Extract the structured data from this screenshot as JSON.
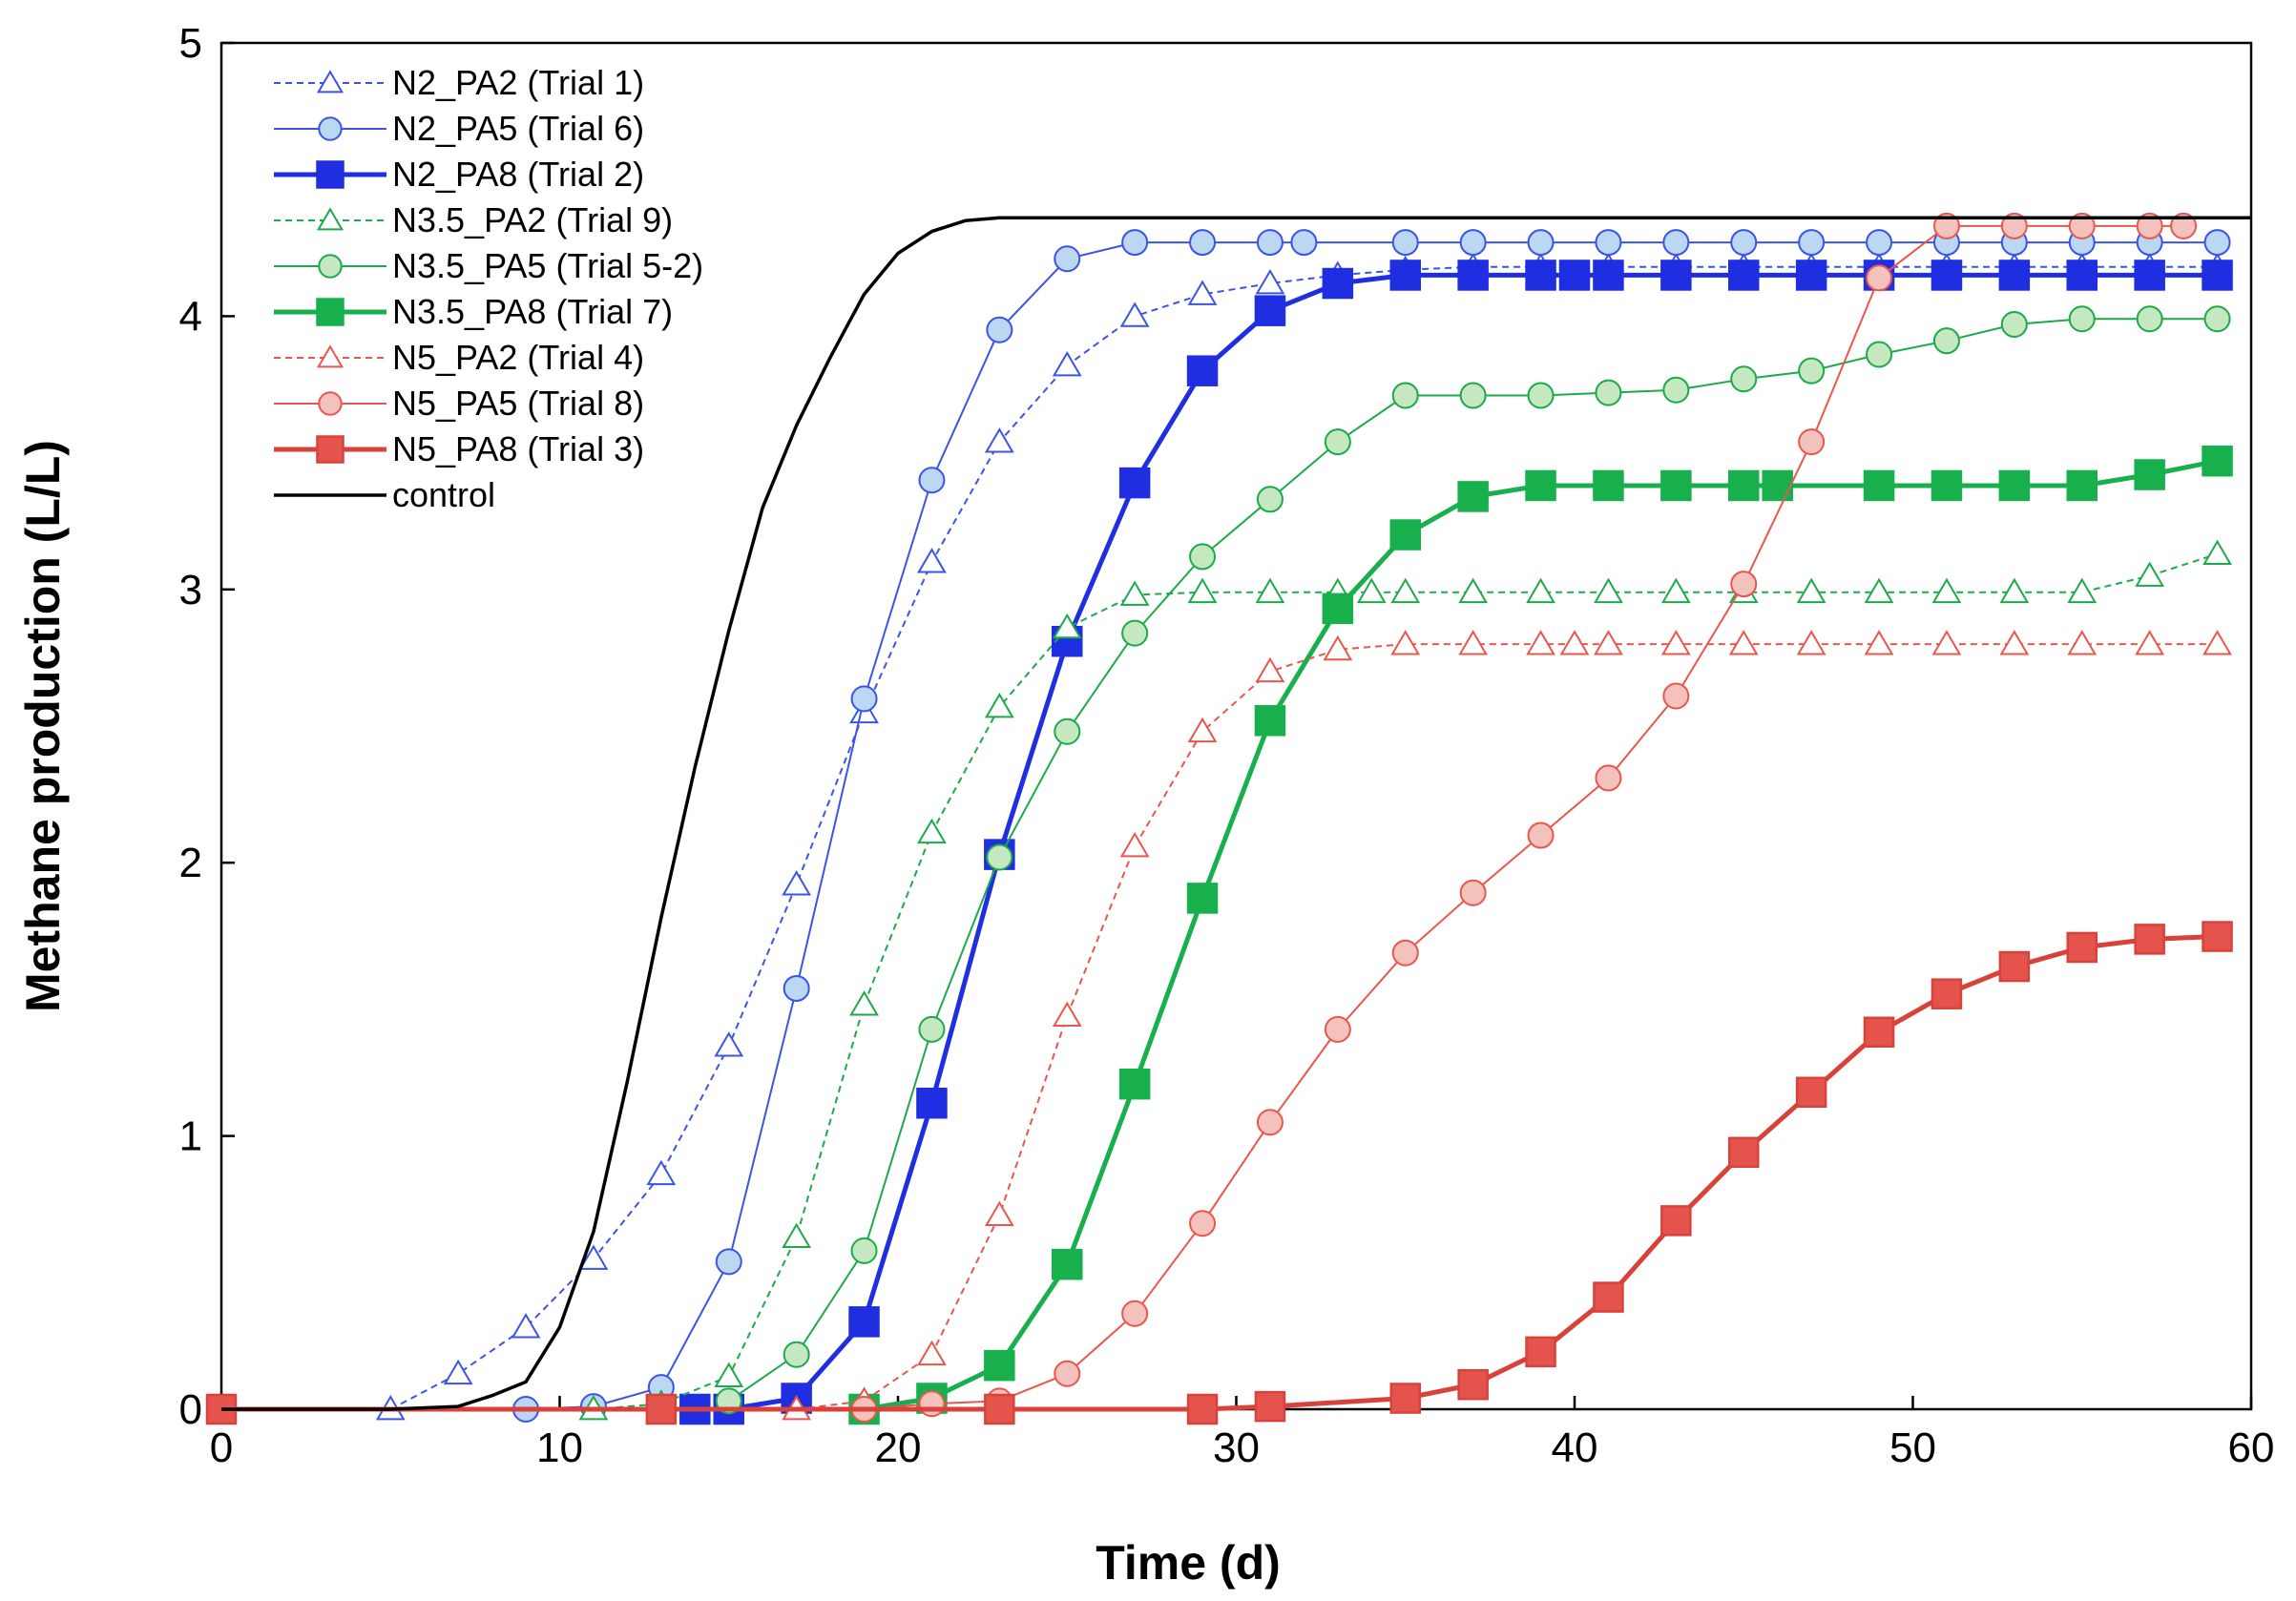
{
  "chart_data": {
    "type": "line",
    "title": "",
    "xlabel": "Time (d)",
    "ylabel": "Methane production (L/L)",
    "xlim": [
      0,
      60
    ],
    "ylim": [
      0,
      5
    ],
    "xticks": [
      "0",
      "10",
      "20",
      "30",
      "40",
      "50",
      "60"
    ],
    "yticks": [
      "0",
      "1",
      "2",
      "3",
      "4",
      "5"
    ],
    "grid": false,
    "legend_position": "top-left",
    "series": [
      {
        "name": "N2_PA2 (Trial 1)",
        "color": "#3c54e6",
        "marker": "triangle",
        "fill": "none",
        "dash": true,
        "width": "thin",
        "x": [
          5,
          7,
          9,
          11,
          13,
          15,
          17,
          19,
          21,
          23,
          25,
          27,
          29,
          31,
          33,
          35,
          37,
          39,
          41,
          43,
          45,
          47,
          49,
          51,
          53,
          55,
          57,
          59
        ],
        "y": [
          0.0,
          0.13,
          0.3,
          0.55,
          0.86,
          1.33,
          1.92,
          2.55,
          3.1,
          3.54,
          3.82,
          4.0,
          4.08,
          4.12,
          4.15,
          4.17,
          4.18,
          4.18,
          4.18,
          4.18,
          4.18,
          4.18,
          4.18,
          4.18,
          4.18,
          4.18,
          4.18,
          4.18
        ]
      },
      {
        "name": "N2_PA5 (Trial 6)",
        "color": "#3c54e6",
        "marker": "circle",
        "fill": "#bcd7f2",
        "dash": false,
        "width": "thin",
        "x": [
          9,
          11,
          13,
          15,
          17,
          19,
          21,
          23,
          25,
          27,
          29,
          31,
          32,
          35,
          37,
          39,
          41,
          43,
          45,
          47,
          49,
          51,
          53,
          55,
          57,
          59
        ],
        "y": [
          0.0,
          0.01,
          0.08,
          0.54,
          1.54,
          2.6,
          3.4,
          3.95,
          4.21,
          4.27,
          4.27,
          4.27,
          4.27,
          4.27,
          4.27,
          4.27,
          4.27,
          4.27,
          4.27,
          4.27,
          4.27,
          4.27,
          4.27,
          4.27,
          4.27,
          4.27
        ]
      },
      {
        "name": "N2_PA8 (Trial 2)",
        "color": "#1f2ee0",
        "marker": "square",
        "fill": "#1f2ee0",
        "dash": false,
        "width": "thick",
        "x": [
          14,
          15,
          17,
          19,
          21,
          23,
          25,
          27,
          29,
          31,
          33,
          35,
          37,
          39,
          40,
          41,
          43,
          45,
          47,
          49,
          51,
          53,
          55,
          57,
          59
        ],
        "y": [
          0.0,
          0.0,
          0.04,
          0.32,
          1.12,
          2.03,
          2.81,
          3.39,
          3.8,
          4.02,
          4.12,
          4.15,
          4.15,
          4.15,
          4.15,
          4.15,
          4.15,
          4.15,
          4.15,
          4.15,
          4.15,
          4.15,
          4.15,
          4.15,
          4.15
        ]
      },
      {
        "name": "N3.5_PA2 (Trial 9)",
        "color": "#1caa4a",
        "marker": "triangle",
        "fill": "none",
        "dash": true,
        "width": "thin",
        "x": [
          11,
          13,
          15,
          17,
          19,
          21,
          23,
          25,
          27,
          29,
          31,
          33,
          34,
          35,
          37,
          39,
          41,
          43,
          45,
          47,
          49,
          51,
          53,
          55,
          57,
          59
        ],
        "y": [
          0.0,
          0.02,
          0.12,
          0.63,
          1.48,
          2.11,
          2.57,
          2.86,
          2.98,
          2.99,
          2.99,
          2.99,
          2.99,
          2.99,
          2.99,
          2.99,
          2.99,
          2.99,
          2.99,
          2.99,
          2.99,
          2.99,
          2.99,
          2.99,
          3.05,
          3.13
        ]
      },
      {
        "name": "N3.5_PA5 (Trial 5-2)",
        "color": "#1caa4a",
        "marker": "circle",
        "fill": "#c6e8c0",
        "dash": false,
        "width": "thin",
        "x": [
          15,
          17,
          19,
          21,
          23,
          25,
          27,
          29,
          31,
          33,
          35,
          37,
          39,
          41,
          43,
          45,
          47,
          49,
          51,
          53,
          55,
          57,
          59
        ],
        "y": [
          0.03,
          0.2,
          0.58,
          1.39,
          2.02,
          2.48,
          2.84,
          3.12,
          3.33,
          3.54,
          3.71,
          3.71,
          3.71,
          3.72,
          3.73,
          3.77,
          3.8,
          3.86,
          3.91,
          3.97,
          3.99,
          3.99,
          3.99
        ]
      },
      {
        "name": "N3.5_PA8 (Trial 7)",
        "color": "#17b04c",
        "marker": "square",
        "fill": "#17b04c",
        "dash": false,
        "width": "thick",
        "x": [
          19,
          21,
          23,
          25,
          27,
          29,
          31,
          33,
          35,
          37,
          39,
          41,
          43,
          45,
          46,
          49,
          51,
          53,
          55,
          57,
          59
        ],
        "y": [
          0.0,
          0.04,
          0.16,
          0.53,
          1.19,
          1.87,
          2.52,
          2.93,
          3.2,
          3.34,
          3.38,
          3.38,
          3.38,
          3.38,
          3.38,
          3.38,
          3.38,
          3.38,
          3.38,
          3.42,
          3.47
        ]
      },
      {
        "name": "N5_PA2 (Trial 4)",
        "color": "#e8574d",
        "marker": "triangle",
        "fill": "none",
        "dash": true,
        "width": "thin",
        "x": [
          17,
          19,
          21,
          23,
          25,
          27,
          29,
          31,
          33,
          35,
          37,
          39,
          40,
          41,
          43,
          45,
          47,
          49,
          51,
          53,
          55,
          57,
          59
        ],
        "y": [
          0.0,
          0.03,
          0.2,
          0.71,
          1.44,
          2.06,
          2.48,
          2.7,
          2.78,
          2.8,
          2.8,
          2.8,
          2.8,
          2.8,
          2.8,
          2.8,
          2.8,
          2.8,
          2.8,
          2.8,
          2.8,
          2.8,
          2.8
        ]
      },
      {
        "name": "N5_PA5 (Trial 8)",
        "color": "#e8574d",
        "marker": "circle",
        "fill": "#f4c2bc",
        "dash": false,
        "width": "thin",
        "x": [
          19,
          21,
          23,
          25,
          27,
          29,
          31,
          33,
          35,
          37,
          39,
          41,
          43,
          45,
          47,
          49,
          51,
          53,
          55,
          57,
          58
        ],
        "y": [
          0.0,
          0.02,
          0.03,
          0.13,
          0.35,
          0.68,
          1.05,
          1.39,
          1.67,
          1.89,
          2.1,
          2.31,
          2.61,
          3.02,
          3.54,
          4.14,
          4.33,
          4.33,
          4.33,
          4.33,
          4.33
        ]
      },
      {
        "name": "N5_PA8 (Trial 3)",
        "color": "#d9423a",
        "marker": "square",
        "fill": "#e5544c",
        "dash": false,
        "width": "thick",
        "x": [
          0,
          13,
          23,
          29,
          31,
          35,
          37,
          39,
          41,
          43,
          45,
          47,
          49,
          51,
          53,
          55,
          57,
          59
        ],
        "y": [
          0.0,
          0.0,
          0.0,
          0.0,
          0.01,
          0.04,
          0.09,
          0.21,
          0.41,
          0.69,
          0.94,
          1.16,
          1.38,
          1.52,
          1.62,
          1.69,
          1.72,
          1.73
        ]
      },
      {
        "name": "control",
        "color": "#000000",
        "marker": "none",
        "fill": "none",
        "dash": false,
        "width": "medium",
        "x": [
          0,
          5,
          7,
          8,
          9,
          10,
          11,
          12,
          13,
          14,
          15,
          16,
          17,
          18,
          19,
          20,
          21,
          22,
          23,
          24,
          25,
          30,
          35,
          40,
          45,
          50,
          55,
          60
        ],
        "y": [
          0.0,
          0.0,
          0.01,
          0.05,
          0.1,
          0.3,
          0.65,
          1.2,
          1.8,
          2.35,
          2.85,
          3.3,
          3.6,
          3.85,
          4.08,
          4.23,
          4.31,
          4.35,
          4.36,
          4.36,
          4.36,
          4.36,
          4.36,
          4.36,
          4.36,
          4.36,
          4.36,
          4.36
        ]
      }
    ]
  }
}
